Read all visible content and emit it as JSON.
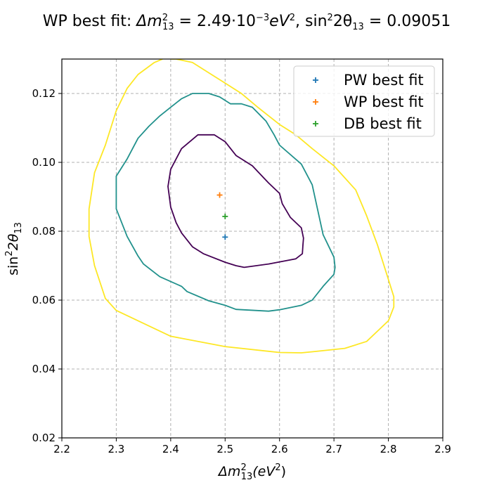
{
  "chart_data": {
    "type": "contour",
    "title_parts": [
      "WP best fit: ",
      "Δm",
      "2",
      "13",
      " = 2.49·10",
      "−3",
      "eV",
      "2",
      ", sin",
      "2",
      "2θ",
      "13",
      " = 0.09051"
    ],
    "xlabel_parts": [
      "Δm",
      "2",
      "13",
      "(eV",
      "2",
      ")"
    ],
    "ylabel_parts": [
      "sin",
      "2",
      "2θ",
      "13"
    ],
    "xlim": [
      2.2,
      2.9
    ],
    "ylim": [
      0.02,
      0.13
    ],
    "xticks": [
      2.2,
      2.3,
      2.4,
      2.5,
      2.6,
      2.7,
      2.8,
      2.9
    ],
    "xtick_labels": [
      "2.2",
      "2.3",
      "2.4",
      "2.5",
      "2.6",
      "2.7",
      "2.8",
      "2.9"
    ],
    "yticks": [
      0.02,
      0.04,
      0.06,
      0.08,
      0.1,
      0.12
    ],
    "ytick_labels": [
      "0.02",
      "0.04",
      "0.06",
      "0.08",
      "0.10",
      "0.12"
    ],
    "grid": true,
    "legend_position": "top-right",
    "contours": [
      {
        "color": "#440154",
        "closed": true,
        "points": [
          [
            2.45,
            0.108
          ],
          [
            2.48,
            0.108
          ],
          [
            2.5,
            0.106
          ],
          [
            2.52,
            0.102
          ],
          [
            2.55,
            0.099
          ],
          [
            2.58,
            0.094
          ],
          [
            2.6,
            0.091
          ],
          [
            2.605,
            0.088
          ],
          [
            2.62,
            0.084
          ],
          [
            2.64,
            0.081
          ],
          [
            2.644,
            0.078
          ],
          [
            2.643,
            0.076
          ],
          [
            2.642,
            0.0735
          ],
          [
            2.63,
            0.072
          ],
          [
            2.58,
            0.0705
          ],
          [
            2.535,
            0.0695
          ],
          [
            2.52,
            0.07
          ],
          [
            2.5,
            0.071
          ],
          [
            2.46,
            0.0735
          ],
          [
            2.44,
            0.0755
          ],
          [
            2.42,
            0.0795
          ],
          [
            2.41,
            0.0825
          ],
          [
            2.4,
            0.087
          ],
          [
            2.395,
            0.093
          ],
          [
            2.4,
            0.098
          ],
          [
            2.41,
            0.101
          ],
          [
            2.42,
            0.104
          ]
        ]
      },
      {
        "color": "#21918c",
        "closed": true,
        "points": [
          [
            2.44,
            0.12
          ],
          [
            2.47,
            0.12
          ],
          [
            2.49,
            0.119
          ],
          [
            2.51,
            0.117
          ],
          [
            2.53,
            0.117
          ],
          [
            2.55,
            0.116
          ],
          [
            2.575,
            0.112
          ],
          [
            2.59,
            0.108
          ],
          [
            2.6,
            0.105
          ],
          [
            2.64,
            0.0995
          ],
          [
            2.66,
            0.0935
          ],
          [
            2.68,
            0.079
          ],
          [
            2.7,
            0.0725
          ],
          [
            2.702,
            0.0695
          ],
          [
            2.7,
            0.0675
          ],
          [
            2.68,
            0.064
          ],
          [
            2.66,
            0.06
          ],
          [
            2.64,
            0.0585
          ],
          [
            2.6,
            0.0572
          ],
          [
            2.58,
            0.0568
          ],
          [
            2.52,
            0.0573
          ],
          [
            2.5,
            0.0585
          ],
          [
            2.47,
            0.0598
          ],
          [
            2.43,
            0.0625
          ],
          [
            2.42,
            0.064
          ],
          [
            2.38,
            0.0668
          ],
          [
            2.35,
            0.0705
          ],
          [
            2.34,
            0.0728
          ],
          [
            2.32,
            0.0785
          ],
          [
            2.3,
            0.0865
          ],
          [
            2.3,
            0.096
          ],
          [
            2.32,
            0.101
          ],
          [
            2.34,
            0.107
          ],
          [
            2.36,
            0.1105
          ],
          [
            2.38,
            0.1135
          ],
          [
            2.4,
            0.116
          ],
          [
            2.42,
            0.1185
          ]
        ]
      },
      {
        "color": "#fde725",
        "closed": false,
        "points": [
          [
            2.4,
            0.13
          ],
          [
            2.41,
            0.13
          ],
          [
            2.44,
            0.129
          ],
          [
            2.47,
            0.126
          ],
          [
            2.5,
            0.123
          ],
          [
            2.53,
            0.12
          ],
          [
            2.56,
            0.116
          ],
          [
            2.6,
            0.111
          ],
          [
            2.63,
            0.108
          ],
          [
            2.66,
            0.104
          ],
          [
            2.7,
            0.099
          ],
          [
            2.74,
            0.092
          ],
          [
            2.76,
            0.0845
          ],
          [
            2.78,
            0.076
          ],
          [
            2.8,
            0.066
          ],
          [
            2.81,
            0.061
          ],
          [
            2.81,
            0.058
          ],
          [
            2.8,
            0.054
          ],
          [
            2.78,
            0.051
          ],
          [
            2.76,
            0.048
          ],
          [
            2.72,
            0.046
          ],
          [
            2.66,
            0.045
          ],
          [
            2.64,
            0.0447
          ],
          [
            2.6,
            0.0448
          ],
          [
            2.5,
            0.0465
          ],
          [
            2.4,
            0.0495
          ],
          [
            2.3,
            0.057
          ],
          [
            2.28,
            0.0605
          ],
          [
            2.26,
            0.07
          ],
          [
            2.25,
            0.0785
          ],
          [
            2.25,
            0.0865
          ],
          [
            2.26,
            0.097
          ],
          [
            2.28,
            0.105
          ],
          [
            2.3,
            0.115
          ],
          [
            2.32,
            0.1215
          ],
          [
            2.34,
            0.1255
          ],
          [
            2.37,
            0.129
          ],
          [
            2.385,
            0.13
          ]
        ]
      }
    ],
    "series": [
      {
        "name": "PW best fit",
        "color": "#1f77b4",
        "x": [
          2.5
        ],
        "y": [
          0.0783
        ]
      },
      {
        "name": "WP best fit",
        "color": "#ff7f0e",
        "x": [
          2.49
        ],
        "y": [
          0.09051
        ]
      },
      {
        "name": "DB best fit",
        "color": "#2ca02c",
        "x": [
          2.5
        ],
        "y": [
          0.0843
        ]
      }
    ]
  }
}
